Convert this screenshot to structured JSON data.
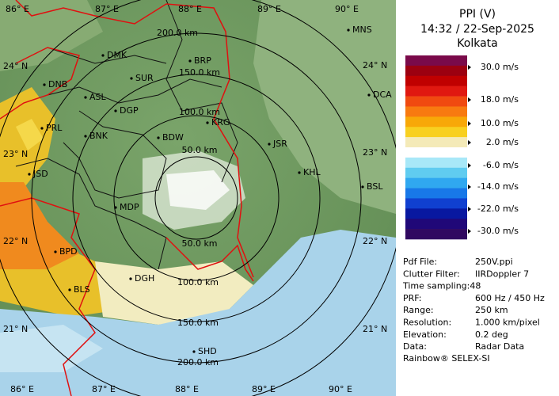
{
  "header": {
    "title": "PPI (V)",
    "time": "14:32 / 22-Sep-2025",
    "site": "Kolkata"
  },
  "legend": [
    "30.0 m/s",
    "18.0 m/s",
    "10.0 m/s",
    "2.0 m/s",
    "-6.0 m/s",
    "-14.0 m/s",
    "-22.0 m/s",
    "-30.0 m/s"
  ],
  "info": [
    [
      "Pdf File:",
      "250V.ppi"
    ],
    [
      "Clutter Filter:",
      "IIRDoppler 7"
    ],
    [
      "Time sampling:48"
    ],
    [
      "PRF:",
      "600 Hz / 450 Hz"
    ],
    [
      "Range:",
      "250 km"
    ],
    [
      "Resolution:",
      "1.000 km/pixel"
    ],
    [
      "Elevation:",
      "0.2 deg"
    ],
    [
      "Data:",
      "Radar Data"
    ]
  ],
  "footer": "Rainbow® SELEX-SI",
  "map": {
    "ring_labels": [
      "200.0 km",
      "150.0 km",
      "100.0 km",
      "50.0 km",
      "50.0 km",
      "100.0 km",
      "150.0 km",
      "200.0 km"
    ],
    "lon_top": [
      "86° E",
      "87° E",
      "88° E",
      "89° E",
      "90° E"
    ],
    "lon_bottom": [
      "86° E",
      "87° E",
      "88° E",
      "89° E",
      "90° E"
    ],
    "lat_left": [
      "24° N",
      "23° N",
      "22° N",
      "21° N"
    ],
    "lat_right": [
      "24° N",
      "23° N",
      "22° N",
      "21° N"
    ],
    "cities": [
      "MNS",
      "DMK",
      "BRP",
      "DNB",
      "SUR",
      "DCA",
      "ASL",
      "DGP",
      "KRG",
      "PRL",
      "BNK",
      "BDW",
      "JSR",
      "KHL",
      "JSD",
      "BSL",
      "MDP",
      "BPD",
      "DGH",
      "BLS",
      "SHD"
    ]
  }
}
